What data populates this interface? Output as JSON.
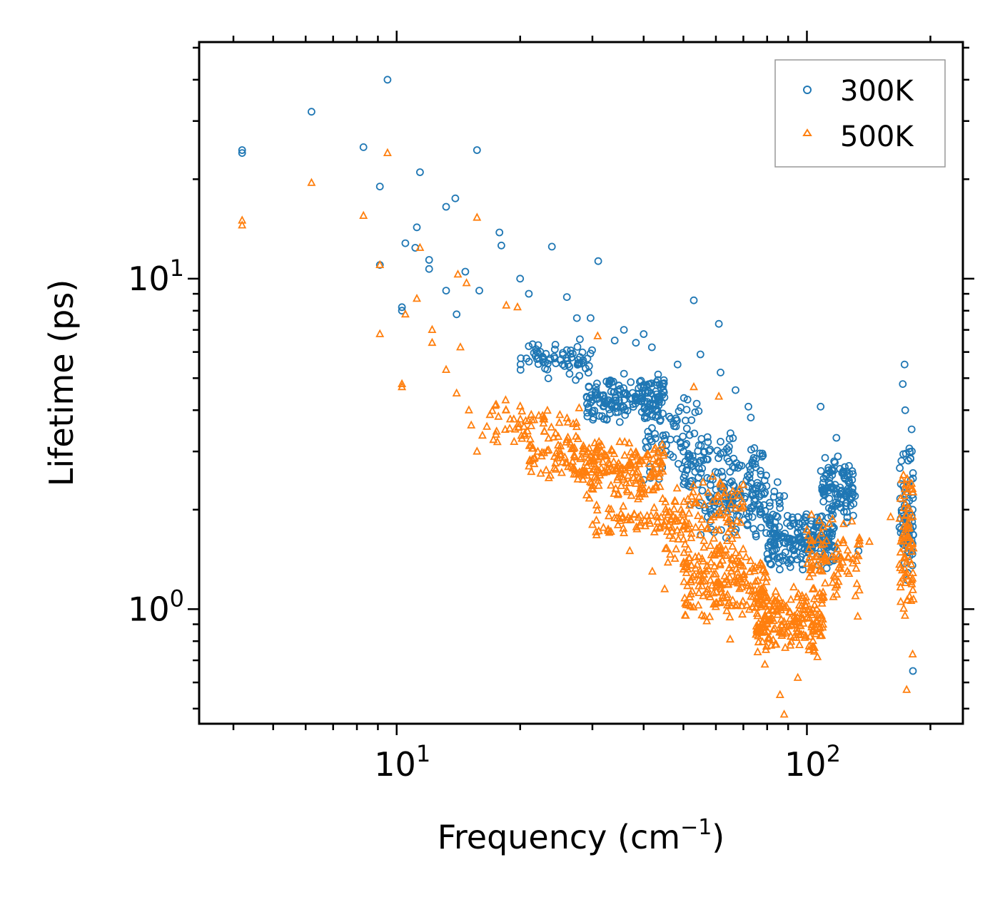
{
  "chart_data": {
    "type": "scatter",
    "title": "",
    "xlabel": "Frequency (cm",
    "xlabel_sup": "−1",
    "xlabel_suffix": ")",
    "ylabel": "Lifetime (ps)",
    "xscale": "log",
    "yscale": "log",
    "xlim": [
      3.3,
      240
    ],
    "ylim": [
      0.45,
      52
    ],
    "x_tick_labels": [
      {
        "value": 10,
        "base": "10",
        "exp": "1"
      },
      {
        "value": 100,
        "base": "10",
        "exp": "2"
      }
    ],
    "y_tick_labels": [
      {
        "value": 1,
        "base": "10",
        "exp": "0"
      },
      {
        "value": 10,
        "base": "10",
        "exp": "1"
      }
    ],
    "legend_position": "top-right",
    "series": [
      {
        "name": "300K",
        "marker": "circle",
        "color": "#1f77b4",
        "points": [
          [
            4.2,
            24.5
          ],
          [
            4.2,
            24.0
          ],
          [
            6.2,
            32.0
          ],
          [
            8.3,
            25.0
          ],
          [
            9.5,
            40.0
          ],
          [
            9.1,
            19.0
          ],
          [
            11.4,
            21.0
          ],
          [
            11.2,
            14.3
          ],
          [
            13.9,
            17.5
          ],
          [
            13.2,
            16.5
          ],
          [
            15.7,
            24.5
          ],
          [
            17.8,
            13.8
          ],
          [
            18.0,
            12.6
          ],
          [
            23.9,
            12.5
          ],
          [
            31.0,
            11.3
          ],
          [
            10.5,
            12.8
          ],
          [
            11.1,
            12.4
          ],
          [
            12.0,
            10.7
          ],
          [
            12.0,
            11.4
          ],
          [
            9.1,
            11.0
          ],
          [
            14.7,
            10.5
          ],
          [
            10.3,
            8.2
          ],
          [
            10.3,
            8.0
          ],
          [
            13.2,
            9.2
          ],
          [
            14.0,
            7.8
          ],
          [
            15.9,
            9.2
          ],
          [
            20.0,
            10.0
          ],
          [
            21.0,
            9.0
          ],
          [
            26.0,
            8.8
          ],
          [
            27.5,
            7.6
          ],
          [
            29.7,
            7.6
          ],
          [
            40.0,
            6.8
          ],
          [
            53.0,
            8.6
          ],
          [
            61.0,
            7.3
          ],
          [
            34.0,
            6.5
          ],
          [
            35.8,
            7.0
          ],
          [
            38.3,
            6.4
          ],
          [
            41.9,
            6.2
          ],
          [
            48.4,
            5.5
          ],
          [
            55.0,
            5.9
          ],
          [
            61.6,
            5.2
          ],
          [
            67.0,
            4.6
          ],
          [
            72.0,
            4.1
          ],
          [
            73.0,
            3.8
          ],
          [
            88.0,
            2.2
          ],
          [
            108.0,
            4.1
          ],
          [
            118.0,
            3.3
          ],
          [
            119.0,
            2.9
          ],
          [
            131.0,
            2.2
          ],
          [
            133.6,
            1.5
          ],
          [
            173.0,
            5.5
          ],
          [
            171.3,
            4.8
          ],
          [
            173.6,
            4.0
          ],
          [
            180.0,
            3.5
          ],
          [
            181.3,
            0.65
          ],
          [
            181.0,
            2.0
          ],
          [
            116.5,
            2.8
          ],
          [
            110.0,
            2.3
          ],
          [
            95.0,
            1.7
          ],
          [
            79.6,
            1.7
          ],
          [
            60.0,
            2.3
          ],
          [
            50.0,
            3.0
          ]
        ],
        "clusters": [
          {
            "x": [
              20,
              30
            ],
            "y": [
              4.8,
              6.8
            ],
            "n": 70
          },
          {
            "x": [
              29,
              45
            ],
            "y": [
              3.6,
              5.2
            ],
            "n": 180
          },
          {
            "x": [
              40,
              55
            ],
            "y": [
              2.4,
              4.6
            ],
            "n": 70
          },
          {
            "x": [
              50,
              80
            ],
            "y": [
              2.0,
              3.6
            ],
            "n": 110
          },
          {
            "x": [
              55,
              86
            ],
            "y": [
              1.6,
              2.6
            ],
            "n": 110
          },
          {
            "x": [
              80,
              118
            ],
            "y": [
              1.3,
              2.0
            ],
            "n": 200
          },
          {
            "x": [
              108,
              130
            ],
            "y": [
              1.8,
              2.9
            ],
            "n": 100
          },
          {
            "x": [
              168,
              182
            ],
            "y": [
              1.1,
              3.2
            ],
            "n": 70
          }
        ]
      },
      {
        "name": "500K",
        "marker": "triangle",
        "color": "#ff7f0e",
        "points": [
          [
            4.2,
            15.0
          ],
          [
            4.2,
            14.5
          ],
          [
            6.2,
            19.5
          ],
          [
            8.3,
            15.5
          ],
          [
            9.5,
            24.0
          ],
          [
            9.1,
            11.0
          ],
          [
            11.4,
            12.4
          ],
          [
            15.7,
            15.3
          ],
          [
            10.5,
            7.8
          ],
          [
            11.2,
            8.7
          ],
          [
            12.2,
            7.0
          ],
          [
            12.2,
            6.4
          ],
          [
            9.1,
            6.8
          ],
          [
            10.3,
            4.8
          ],
          [
            10.3,
            4.7
          ],
          [
            13.2,
            5.3
          ],
          [
            14.3,
            6.2
          ],
          [
            14.0,
            4.5
          ],
          [
            15.0,
            4.0
          ],
          [
            15.2,
            3.6
          ],
          [
            15.7,
            3.0
          ],
          [
            14.8,
            9.7
          ],
          [
            14.1,
            10.3
          ],
          [
            18.5,
            8.3
          ],
          [
            19.7,
            8.2
          ],
          [
            30.9,
            6.7
          ],
          [
            53.0,
            4.7
          ],
          [
            61.0,
            4.4
          ],
          [
            80.0,
            0.9
          ],
          [
            86.0,
            0.55
          ],
          [
            88.0,
            0.48
          ],
          [
            79.0,
            0.68
          ],
          [
            95.0,
            0.62
          ],
          [
            65.0,
            0.81
          ],
          [
            57.0,
            0.92
          ],
          [
            45.0,
            1.15
          ],
          [
            42.0,
            1.3
          ],
          [
            37.0,
            1.5
          ],
          [
            30.0,
            1.8
          ],
          [
            175.0,
            0.57
          ],
          [
            181.0,
            0.73
          ],
          [
            133.0,
            0.95
          ],
          [
            160.0,
            1.9
          ],
          [
            180.0,
            2.3
          ],
          [
            142.0,
            1.6
          ]
        ],
        "clusters": [
          {
            "x": [
              16,
              28
            ],
            "y": [
              2.9,
              4.4
            ],
            "n": 70
          },
          {
            "x": [
              21,
              29
            ],
            "y": [
              2.4,
              3.4
            ],
            "n": 60
          },
          {
            "x": [
              28,
              45
            ],
            "y": [
              2.1,
              3.3
            ],
            "n": 180
          },
          {
            "x": [
              30,
              48
            ],
            "y": [
              1.6,
              2.2
            ],
            "n": 60
          },
          {
            "x": [
              45,
              70
            ],
            "y": [
              1.3,
              2.6
            ],
            "n": 130
          },
          {
            "x": [
              50,
              80
            ],
            "y": [
              0.9,
              1.6
            ],
            "n": 180
          },
          {
            "x": [
              75,
              110
            ],
            "y": [
              0.7,
              1.2
            ],
            "n": 200
          },
          {
            "x": [
              100,
              135
            ],
            "y": [
              1.0,
              2.0
            ],
            "n": 90
          },
          {
            "x": [
              168,
              182
            ],
            "y": [
              0.9,
              2.6
            ],
            "n": 80
          }
        ]
      }
    ]
  }
}
